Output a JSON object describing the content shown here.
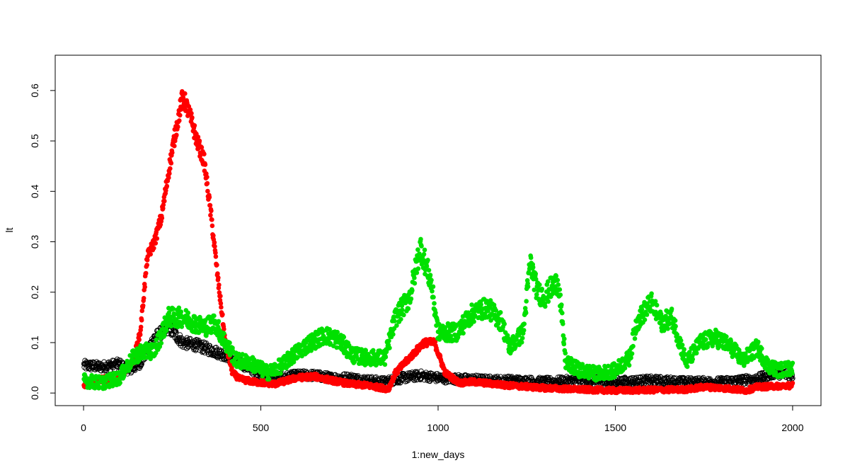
{
  "chart_data": {
    "type": "scatter",
    "title": "",
    "xlabel": "1:new_days",
    "ylabel": "lt",
    "xlim": [
      -80,
      2080
    ],
    "ylim": [
      -0.025,
      0.67
    ],
    "x_ticks": [
      0,
      500,
      1000,
      1500,
      2000
    ],
    "x_tick_labels": [
      "0",
      "500",
      "1000",
      "1500",
      "2000"
    ],
    "y_ticks": [
      0.0,
      0.1,
      0.2,
      0.3,
      0.4,
      0.5,
      0.6
    ],
    "y_tick_labels": [
      "0.0",
      "0.1",
      "0.2",
      "0.3",
      "0.4",
      "0.5",
      "0.6"
    ],
    "grid": false,
    "legend": "none",
    "series": [
      {
        "color": "#000000",
        "marker": "open-circle",
        "x_range": [
          1,
          2000
        ],
        "profile_x": [
          0,
          50,
          100,
          130,
          160,
          200,
          240,
          280,
          320,
          360,
          400,
          440,
          480,
          520,
          560,
          600,
          650,
          700,
          750,
          800,
          850,
          900,
          950,
          1000,
          1050,
          1100,
          1150,
          1200,
          1300,
          1400,
          1500,
          1600,
          1700,
          1800,
          1850,
          1900,
          1950,
          2000
        ],
        "profile_y": [
          0.055,
          0.052,
          0.058,
          0.045,
          0.06,
          0.11,
          0.13,
          0.1,
          0.095,
          0.085,
          0.075,
          0.06,
          0.045,
          0.035,
          0.03,
          0.035,
          0.035,
          0.03,
          0.03,
          0.025,
          0.022,
          0.03,
          0.035,
          0.03,
          0.028,
          0.027,
          0.025,
          0.025,
          0.022,
          0.025,
          0.022,
          0.025,
          0.022,
          0.022,
          0.025,
          0.028,
          0.04,
          0.035
        ],
        "spread": 0.008
      },
      {
        "color": "#ff0000",
        "marker": "filled-circle",
        "x_range": [
          1,
          2000
        ],
        "profile_x": [
          0,
          30,
          60,
          90,
          120,
          140,
          160,
          180,
          200,
          220,
          240,
          260,
          280,
          300,
          320,
          340,
          360,
          380,
          400,
          420,
          440,
          480,
          540,
          600,
          650,
          700,
          750,
          800,
          860,
          880,
          920,
          960,
          990,
          1020,
          1060,
          1100,
          1200,
          1300,
          1400,
          1500,
          1600,
          1700,
          1750,
          1800,
          1870,
          1900,
          2000
        ],
        "profile_y": [
          0.015,
          0.025,
          0.028,
          0.022,
          0.045,
          0.065,
          0.12,
          0.27,
          0.3,
          0.35,
          0.44,
          0.52,
          0.59,
          0.55,
          0.5,
          0.46,
          0.35,
          0.22,
          0.1,
          0.04,
          0.028,
          0.022,
          0.018,
          0.03,
          0.033,
          0.025,
          0.018,
          0.015,
          0.008,
          0.04,
          0.07,
          0.1,
          0.1,
          0.04,
          0.02,
          0.022,
          0.015,
          0.01,
          0.007,
          0.005,
          0.006,
          0.007,
          0.012,
          0.01,
          0.005,
          0.012,
          0.015
        ],
        "spread": 0.005
      },
      {
        "color": "#00e000",
        "marker": "filled-circle",
        "x_range": [
          1,
          2000
        ],
        "profile_x": [
          0,
          50,
          100,
          140,
          160,
          200,
          240,
          280,
          310,
          340,
          370,
          400,
          430,
          470,
          520,
          560,
          600,
          640,
          680,
          720,
          760,
          800,
          850,
          880,
          920,
          950,
          980,
          1000,
          1050,
          1100,
          1140,
          1180,
          1200,
          1240,
          1260,
          1280,
          1300,
          1320,
          1340,
          1360,
          1400,
          1450,
          1500,
          1540,
          1560,
          1600,
          1630,
          1660,
          1700,
          1740,
          1780,
          1820,
          1860,
          1900,
          1930,
          1960,
          2000
        ],
        "profile_y": [
          0.025,
          0.02,
          0.03,
          0.07,
          0.08,
          0.085,
          0.15,
          0.15,
          0.14,
          0.13,
          0.14,
          0.1,
          0.065,
          0.06,
          0.04,
          0.055,
          0.08,
          0.1,
          0.115,
          0.105,
          0.075,
          0.07,
          0.07,
          0.15,
          0.19,
          0.29,
          0.22,
          0.12,
          0.12,
          0.16,
          0.17,
          0.14,
          0.09,
          0.12,
          0.26,
          0.2,
          0.19,
          0.21,
          0.22,
          0.06,
          0.045,
          0.038,
          0.045,
          0.07,
          0.14,
          0.18,
          0.14,
          0.15,
          0.06,
          0.1,
          0.11,
          0.095,
          0.065,
          0.09,
          0.055,
          0.045,
          0.05
        ],
        "spread": 0.012
      }
    ]
  }
}
